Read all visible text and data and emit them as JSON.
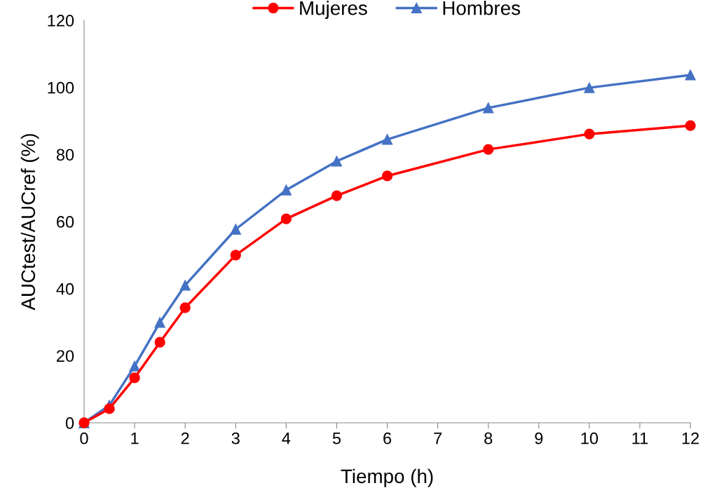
{
  "chart_data": {
    "type": "line",
    "xlabel": "Tiempo (h)",
    "ylabel": "AUCtest/AUCref (%)",
    "x": [
      0,
      0.5,
      1,
      1.5,
      2,
      3,
      4,
      5,
      6,
      8,
      10,
      12
    ],
    "series": [
      {
        "name": "Mujeres",
        "color": "#ff0000",
        "marker": "circle",
        "values": [
          0,
          4.2,
          13.4,
          24,
          34.3,
          50,
          60.8,
          67.7,
          73.6,
          81.5,
          86.1,
          88.6
        ]
      },
      {
        "name": "Hombres",
        "color": "#4472c4",
        "marker": "triangle",
        "values": [
          0,
          5.2,
          16.9,
          29.9,
          41,
          57.7,
          69.4,
          78,
          84.5,
          93.9,
          99.9,
          103.7
        ]
      }
    ],
    "xlim": [
      0,
      12
    ],
    "xticks": [
      0,
      1,
      2,
      3,
      4,
      5,
      6,
      7,
      8,
      9,
      10,
      11,
      12
    ],
    "ylim": [
      0,
      120
    ],
    "yticks": [
      0,
      20,
      40,
      60,
      80,
      100,
      120
    ],
    "grid": false,
    "legend": "top",
    "line_style": "solid"
  }
}
